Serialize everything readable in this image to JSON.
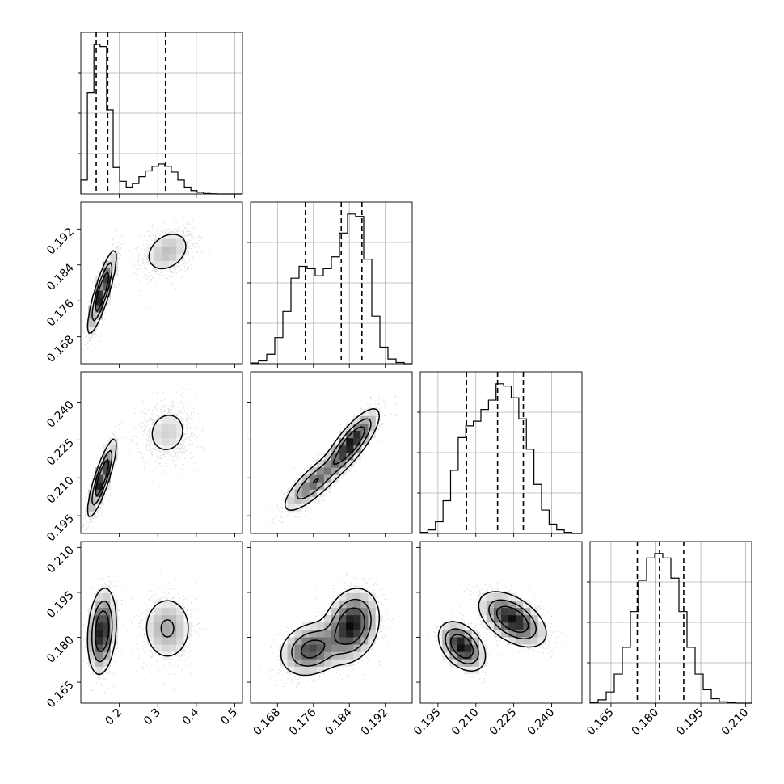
{
  "chart_data": {
    "type": "corner",
    "colors": {
      "ink": "#000000",
      "grid": "#b0b0b0"
    },
    "grid": true,
    "parameters": [
      {
        "range": [
          0.1,
          0.52
        ],
        "ticks": [
          0.2,
          0.3,
          0.4,
          0.5
        ],
        "tick_labels": [
          "0.2",
          "0.3",
          "0.4",
          "0.5"
        ],
        "quantiles": [
          0.14,
          0.17,
          0.32
        ],
        "histogram": {
          "bins": [
            0.1,
            0.117,
            0.134,
            0.15,
            0.167,
            0.184,
            0.201,
            0.218,
            0.234,
            0.251,
            0.268,
            0.285,
            0.302,
            0.318,
            0.335,
            0.352,
            0.369,
            0.386,
            0.402,
            0.419,
            0.436,
            0.453,
            0.47,
            0.486,
            0.503,
            0.52
          ],
          "counts": [
            12,
            88,
            130,
            128,
            73,
            23,
            11,
            6,
            9,
            15,
            20,
            24,
            26,
            24,
            19,
            12,
            6,
            3,
            1.5,
            0.5,
            0.2,
            0,
            0,
            0,
            0
          ]
        }
      },
      {
        "range": [
          0.162,
          0.198
        ],
        "ticks": [
          0.168,
          0.176,
          0.184,
          0.192
        ],
        "tick_labels": [
          "0.168",
          "0.176",
          "0.184",
          "0.192"
        ],
        "quantiles": [
          0.1742,
          0.1822,
          0.1868
        ],
        "histogram": {
          "bins": [
            0.162,
            0.1638,
            0.1656,
            0.1674,
            0.1692,
            0.171,
            0.1728,
            0.1746,
            0.1764,
            0.1782,
            0.18,
            0.1818,
            0.1836,
            0.1854,
            0.1872,
            0.189,
            0.1908,
            0.1926,
            0.1944,
            0.1962,
            0.198
          ],
          "counts": [
            0.3,
            1.2,
            4,
            11,
            22,
            36,
            41,
            40,
            37,
            40,
            45,
            55,
            63,
            62,
            44,
            20,
            7,
            2,
            0.5,
            0
          ]
        }
      },
      {
        "range": [
          0.188,
          0.252
        ],
        "ticks": [
          0.195,
          0.21,
          0.225,
          0.24
        ],
        "tick_labels": [
          "0.195",
          "0.210",
          "0.225",
          "0.240"
        ],
        "quantiles": [
          0.2063,
          0.2186,
          0.2288
        ],
        "histogram": {
          "bins": [
            0.188,
            0.191,
            0.194,
            0.197,
            0.2,
            0.203,
            0.206,
            0.209,
            0.212,
            0.215,
            0.218,
            0.221,
            0.224,
            0.227,
            0.23,
            0.233,
            0.236,
            0.239,
            0.242,
            0.245,
            0.248,
            0.252
          ],
          "counts": [
            0.5,
            1.5,
            5,
            14,
            27,
            41,
            46,
            48,
            53,
            57,
            64,
            63,
            58,
            49,
            36,
            21,
            10,
            4,
            1.5,
            0.5,
            0
          ]
        }
      },
      {
        "range": [
          0.158,
          0.212
        ],
        "ticks": [
          0.165,
          0.18,
          0.195,
          0.21
        ],
        "tick_labels": [
          "0.165",
          "0.180",
          "0.195",
          "0.210"
        ],
        "quantiles": [
          0.1738,
          0.1812,
          0.1893
        ],
        "histogram": {
          "bins": [
            0.158,
            0.1607,
            0.1634,
            0.1661,
            0.1688,
            0.1715,
            0.1742,
            0.1769,
            0.1796,
            0.1823,
            0.185,
            0.1877,
            0.1904,
            0.1931,
            0.1958,
            0.1985,
            0.2012,
            0.2039,
            0.2066,
            0.2093,
            0.212
          ],
          "counts": [
            0.3,
            1.5,
            5,
            13,
            25,
            41,
            55,
            65,
            67,
            65,
            56,
            41,
            25,
            13,
            6,
            2,
            0.6,
            0.2,
            0,
            0
          ]
        }
      }
    ],
    "joint": [
      {
        "row": 1,
        "col": 0,
        "modes": [
          {
            "mx": 0.155,
            "my": 0.178,
            "sx": 0.018,
            "sy": 0.0045,
            "rho": 0.85,
            "w": 0.6
          },
          {
            "mx": 0.325,
            "my": 0.187,
            "sx": 0.035,
            "sy": 0.0028,
            "rho": 0.3,
            "w": 0.4
          }
        ]
      },
      {
        "row": 2,
        "col": 0,
        "modes": [
          {
            "mx": 0.155,
            "my": 0.21,
            "sx": 0.018,
            "sy": 0.0075,
            "rho": 0.85,
            "w": 0.6
          },
          {
            "mx": 0.325,
            "my": 0.228,
            "sx": 0.035,
            "sy": 0.006,
            "rho": 0.1,
            "w": 0.4
          }
        ]
      },
      {
        "row": 2,
        "col": 1,
        "modes": [
          {
            "mx": 0.176,
            "my": 0.208,
            "sx": 0.0035,
            "sy": 0.006,
            "rho": 0.8,
            "w": 0.4
          },
          {
            "mx": 0.1845,
            "my": 0.224,
            "sx": 0.003,
            "sy": 0.0065,
            "rho": 0.8,
            "w": 0.6
          }
        ]
      },
      {
        "row": 3,
        "col": 0,
        "modes": [
          {
            "mx": 0.155,
            "my": 0.182,
            "sx": 0.018,
            "sy": 0.007,
            "rho": 0.2,
            "w": 0.6
          },
          {
            "mx": 0.325,
            "my": 0.183,
            "sx": 0.035,
            "sy": 0.006,
            "rho": 0.0,
            "w": 0.4
          }
        ]
      },
      {
        "row": 3,
        "col": 1,
        "modes": [
          {
            "mx": 0.1755,
            "my": 0.176,
            "sx": 0.0035,
            "sy": 0.0045,
            "rho": 0.2,
            "w": 0.4
          },
          {
            "mx": 0.1845,
            "my": 0.184,
            "sx": 0.003,
            "sy": 0.006,
            "rho": 0.2,
            "w": 0.6
          }
        ]
      },
      {
        "row": 3,
        "col": 2,
        "modes": [
          {
            "mx": 0.2045,
            "my": 0.177,
            "sx": 0.0045,
            "sy": 0.004,
            "rho": -0.4,
            "w": 0.4
          },
          {
            "mx": 0.2245,
            "my": 0.186,
            "sx": 0.0065,
            "sy": 0.0045,
            "rho": -0.5,
            "w": 0.6
          }
        ]
      }
    ]
  }
}
